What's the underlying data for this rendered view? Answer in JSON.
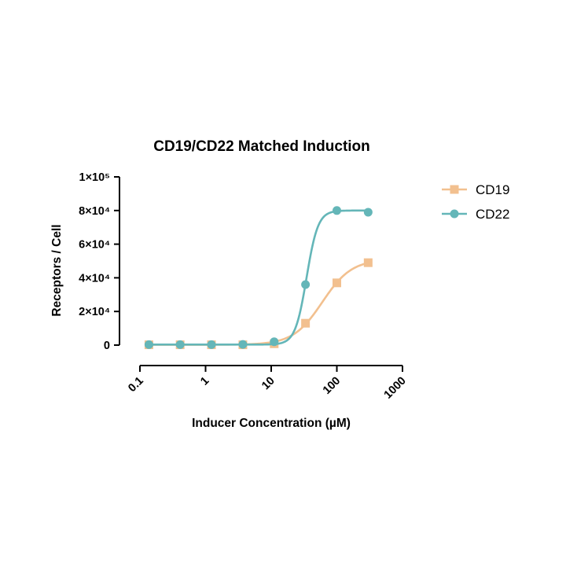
{
  "chart_data": {
    "type": "line",
    "title": "CD19/CD22 Matched Induction",
    "xlabel": "Inducer Concentration (µM)",
    "ylabel": "Receptors / Cell",
    "x_scale": "log",
    "xlim": [
      0.1,
      1000
    ],
    "ylim": [
      0,
      100000
    ],
    "x_ticks": [
      0.1,
      1,
      10,
      100,
      1000
    ],
    "x_tick_labels": [
      "0.1",
      "1",
      "10",
      "100",
      "1000"
    ],
    "y_ticks": [
      0,
      20000,
      40000,
      60000,
      80000,
      100000
    ],
    "y_tick_labels": [
      "0",
      "2×10⁴",
      "4×10⁴",
      "6×10⁴",
      "8×10⁴",
      "1×10⁵"
    ],
    "legend_position": "right",
    "grid": false,
    "series": [
      {
        "name": "CD19",
        "color": "#F2C08F",
        "marker": "square",
        "x": [
          0.137,
          0.41,
          1.23,
          3.7,
          11.1,
          33.3,
          100,
          300
        ],
        "y": [
          200,
          200,
          200,
          200,
          800,
          13000,
          37000,
          49000
        ]
      },
      {
        "name": "CD22",
        "color": "#64B6B8",
        "marker": "circle",
        "x": [
          0.137,
          0.41,
          1.23,
          3.7,
          11.1,
          33.3,
          100,
          300
        ],
        "y": [
          300,
          300,
          300,
          400,
          2000,
          36000,
          80000,
          79000
        ]
      }
    ]
  }
}
